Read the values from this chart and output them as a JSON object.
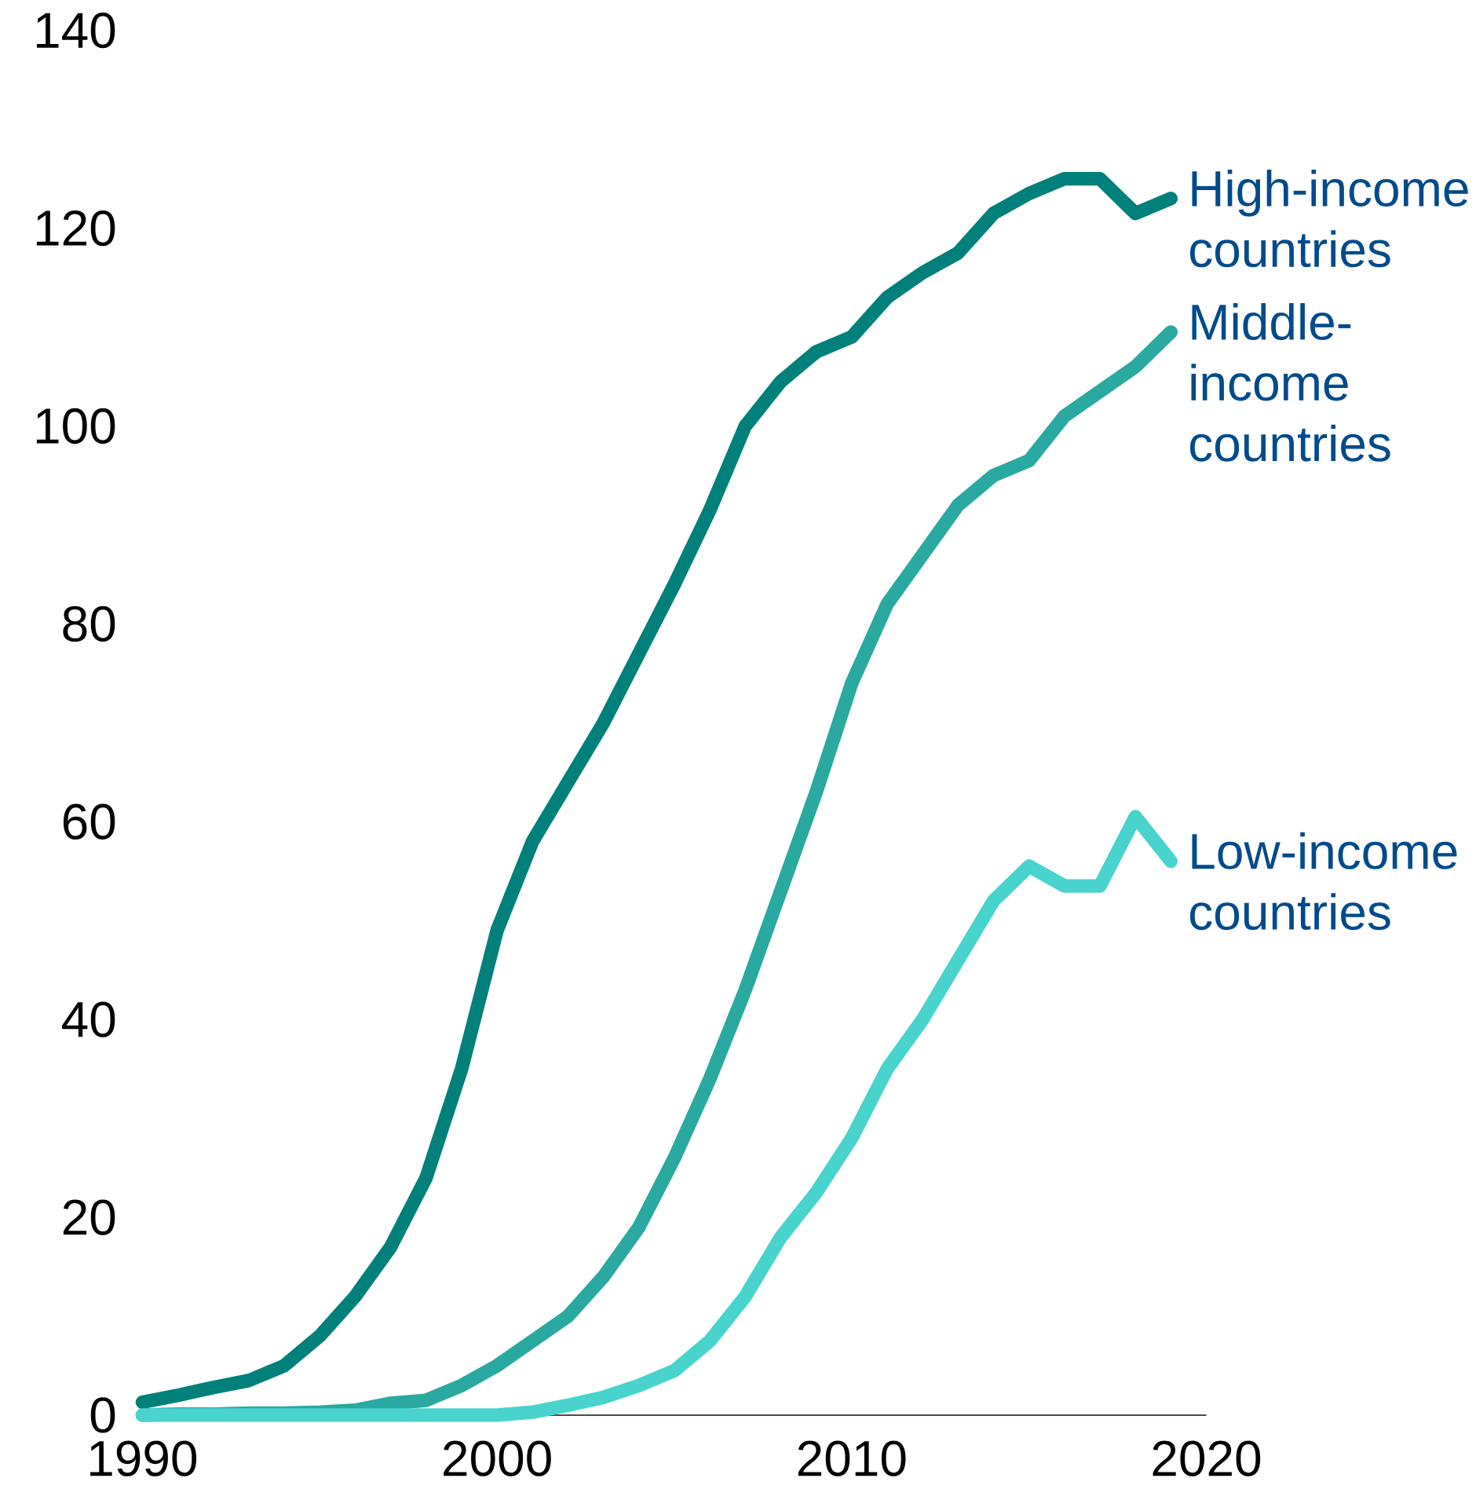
{
  "chart_data": {
    "type": "line",
    "x": [
      1990,
      1991,
      1992,
      1993,
      1994,
      1995,
      1996,
      1997,
      1998,
      1999,
      2000,
      2001,
      2002,
      2003,
      2004,
      2005,
      2006,
      2007,
      2008,
      2009,
      2010,
      2011,
      2012,
      2013,
      2014,
      2015,
      2016,
      2017,
      2018,
      2019
    ],
    "series": [
      {
        "name": "High-income countries",
        "color": "#00807a",
        "values": [
          1.3,
          2.0,
          2.8,
          3.5,
          5,
          8,
          12,
          17,
          24,
          35,
          49,
          58,
          64,
          70,
          77,
          84,
          91.5,
          100,
          104.5,
          107.5,
          109,
          113,
          115.5,
          117.5,
          121.5,
          123.5,
          125,
          125,
          121.5,
          123
        ]
      },
      {
        "name": "Middle-income countries",
        "color": "#2aa9a0",
        "values": [
          0,
          0.1,
          0.1,
          0.2,
          0.2,
          0.3,
          0.5,
          1.2,
          1.5,
          3,
          5,
          7.5,
          10,
          14,
          19,
          26,
          34,
          43,
          53,
          63,
          74,
          82,
          87,
          92,
          95,
          96.5,
          101,
          103.5,
          106,
          109.5
        ]
      },
      {
        "name": "Low-income countries",
        "color": "#48d4cc",
        "values": [
          0,
          0,
          0,
          0,
          0,
          0,
          0,
          0,
          0,
          0,
          0,
          0.3,
          1,
          1.8,
          3,
          4.5,
          7.5,
          12,
          18,
          22.5,
          28,
          35,
          40,
          46,
          52,
          55.5,
          53.5,
          53.5,
          60.5,
          56
        ]
      }
    ],
    "xlim": [
      1990,
      2020
    ],
    "xticks": [
      1990,
      2000,
      2010,
      2020
    ],
    "ylim": [
      0,
      140
    ],
    "yticks": [
      0,
      20,
      40,
      60,
      80,
      100,
      120,
      140
    ],
    "grid": false
  }
}
